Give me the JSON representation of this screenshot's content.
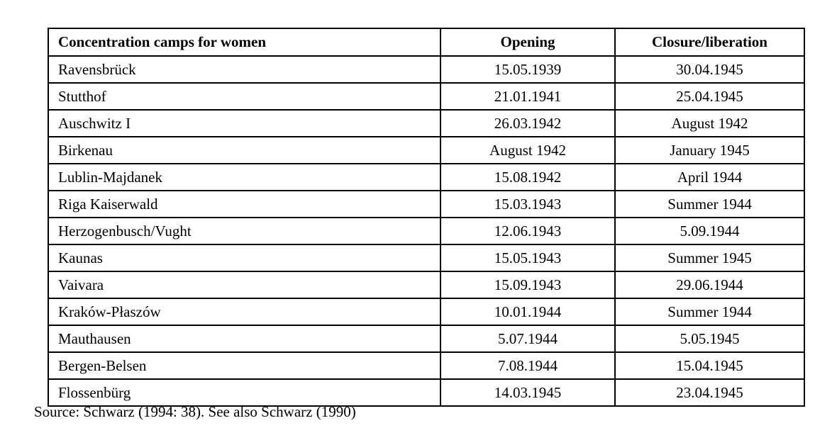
{
  "page": {
    "background_color": "#ffffff",
    "text_color": "#000000",
    "border_color": "#000000"
  },
  "table": {
    "columns": [
      {
        "label": "Concentration camps for women",
        "align": "left"
      },
      {
        "label": "Opening",
        "align": "center"
      },
      {
        "label": "Closure/liberation",
        "align": "center"
      }
    ],
    "rows": [
      [
        "Ravensbrück",
        "15.05.1939",
        "30.04.1945"
      ],
      [
        "Stutthof",
        "21.01.1941",
        "25.04.1945"
      ],
      [
        "Auschwitz I",
        "26.03.1942",
        "August 1942"
      ],
      [
        "Birkenau",
        "August 1942",
        "January 1945"
      ],
      [
        "Lublin-Majdanek",
        "15.08.1942",
        "April 1944"
      ],
      [
        "Riga Kaiserwald",
        "15.03.1943",
        "Summer 1944"
      ],
      [
        "Herzogenbusch/Vught",
        "12.06.1943",
        "5.09.1944"
      ],
      [
        "Kaunas",
        "15.05.1943",
        "Summer 1945"
      ],
      [
        "Vaivara",
        "15.09.1943",
        "29.06.1944"
      ],
      [
        "Kraków-Płaszów",
        "10.01.1944",
        "Summer 1944"
      ],
      [
        "Mauthausen",
        "5.07.1944",
        "5.05.1945"
      ],
      [
        "Bergen-Belsen",
        "7.08.1944",
        "15.04.1945"
      ],
      [
        "Flossenbürg",
        "14.03.1945",
        "23.04.1945"
      ]
    ]
  },
  "source_note": "Source: Schwarz (1994: 38). See also Schwarz (1990)"
}
